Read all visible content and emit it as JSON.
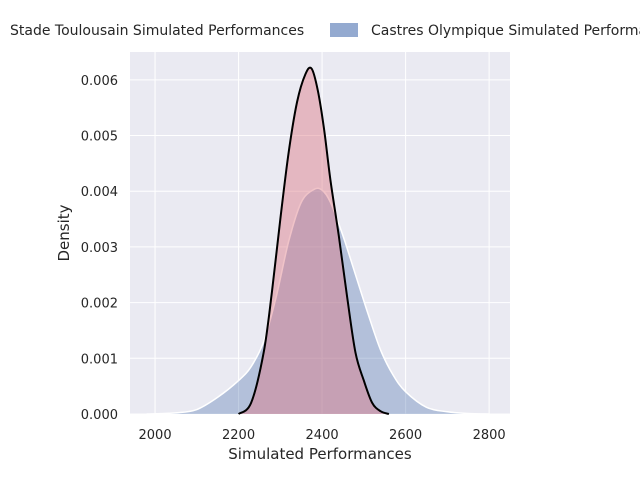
{
  "chart_data": {
    "type": "area",
    "title": "",
    "xlabel": "Simulated Performances",
    "ylabel": "Density",
    "xlim": [
      1940,
      2850
    ],
    "ylim": [
      0,
      0.0065
    ],
    "xticks": [
      2000,
      2200,
      2400,
      2600,
      2800
    ],
    "yticks": [
      0.0,
      0.001,
      0.002,
      0.003,
      0.004,
      0.005,
      0.006
    ],
    "xtick_labels": [
      "2000",
      "2200",
      "2400",
      "2600",
      "2800"
    ],
    "ytick_labels": [
      "0.000",
      "0.001",
      "0.002",
      "0.003",
      "0.004",
      "0.005",
      "0.006"
    ],
    "grid": true,
    "legend_position": "top",
    "series": [
      {
        "name": "Castres Olympique Simulated Performa",
        "fill_color": "#4c72b0",
        "fill_opacity": 0.35,
        "line_color": "#ffffff",
        "x": [
          1980,
          2050,
          2100,
          2150,
          2200,
          2230,
          2260,
          2290,
          2320,
          2350,
          2380,
          2400,
          2420,
          2450,
          2480,
          2510,
          2540,
          2570,
          2600,
          2650,
          2700,
          2750,
          2800
        ],
        "y": [
          0.0,
          2e-05,
          8e-05,
          0.0003,
          0.0006,
          0.00085,
          0.0013,
          0.0021,
          0.0031,
          0.0038,
          0.00403,
          0.00402,
          0.0038,
          0.0032,
          0.0025,
          0.0018,
          0.00115,
          0.0007,
          0.0004,
          0.00012,
          4e-05,
          1e-05,
          0.0
        ]
      },
      {
        "name": "Stade Toulousain Simulated Performances",
        "fill_color": "#dd7a85",
        "fill_opacity": 0.45,
        "line_color": "#000000",
        "x": [
          2200,
          2230,
          2260,
          2280,
          2300,
          2320,
          2340,
          2360,
          2375,
          2390,
          2405,
          2420,
          2440,
          2460,
          2480,
          2500,
          2520,
          2540,
          2560
        ],
        "y": [
          0.0,
          0.0002,
          0.0011,
          0.0022,
          0.0035,
          0.0047,
          0.0056,
          0.0061,
          0.0062,
          0.0058,
          0.0051,
          0.0042,
          0.0032,
          0.0021,
          0.0011,
          0.0006,
          0.0002,
          5e-05,
          0.0
        ]
      }
    ]
  },
  "legend": {
    "items": [
      {
        "label": "Stade Toulousain Simulated Performances",
        "color": "#dd7a85"
      },
      {
        "label": "Castres Olympique Simulated Performa",
        "color": "#4c72b0"
      }
    ]
  }
}
